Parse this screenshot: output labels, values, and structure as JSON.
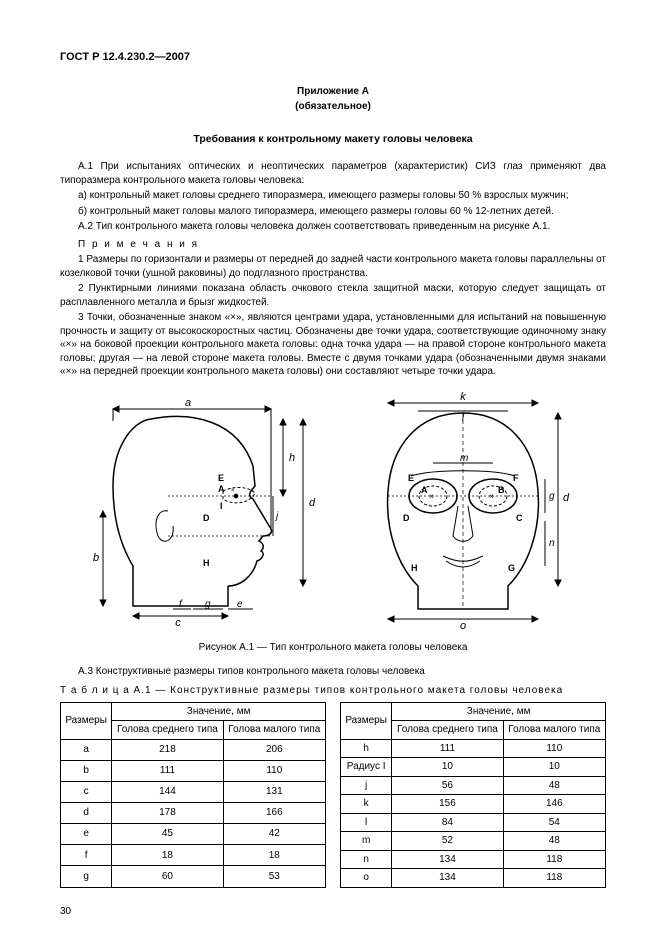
{
  "doc_id": "ГОСТ Р 12.4.230.2—2007",
  "appendix_label": "Приложение А",
  "appendix_mandatory": "(обязательное)",
  "title": "Требования к контрольному макету головы человека",
  "paragraphs": {
    "p1": "А.1 При испытаниях оптических и неоптических параметров (характеристик) СИЗ глаз применяют два типоразмера контрольного макета головы человека:",
    "p1a": "а) контрольный макет головы среднего типоразмера, имеющего размеры головы 50 % взрослых мужчин;",
    "p1b": "б) контрольный макет головы малого типоразмера, имеющего размеры головы 60 % 12-летних детей.",
    "p2": "А.2 Тип контрольного макета головы человека должен соответствовать приведенным на рисунке А.1.",
    "notes_hdr": "П р и м е ч а н и я",
    "n1": "1 Размеры по горизонтали и размеры от передней до задней части контрольного макета головы параллельны от козелковой точки (ушной раковины) до подглазного пространства.",
    "n2": "2 Пунктирными линиями показана область очкового стекла защитной маски, которую следует защищать от расплавленного металла и брызг жидкостей.",
    "n3": "3 Точки, обозначенные знаком «×», являются центрами удара, установленными для испытаний на повышенную прочность и защиту от высокоскоростных частиц. Обозначены две точки удара, соответствующие одиночному знаку «×» на боковой проекции контрольного макета головы: одна точка удара — на правой стороне контрольного макета головы; другая — на левой стороне макета головы. Вместе с двумя точками удара (обозначенными двумя знаками «×» на передней проекции контрольного макета головы) они составляют четыре точки удара."
  },
  "figure_caption": "Рисунок А.1 — Тип контрольного макета головы человека",
  "a3": "А.3 Конструктивные размеры типов контрольного макета головы человека",
  "table_caption": "Т а б л и ц а   А.1 — Конструктивные размеры типов контрольного макета головы человека",
  "table": {
    "headers": {
      "dim": "Размеры",
      "val": "Значение, мм",
      "mid": "Голова среднего типа",
      "small": "Голова малого типа"
    },
    "left_rows": [
      {
        "d": "a",
        "m": "218",
        "s": "206"
      },
      {
        "d": "b",
        "m": "111",
        "s": "110"
      },
      {
        "d": "c",
        "m": "144",
        "s": "131"
      },
      {
        "d": "d",
        "m": "178",
        "s": "166"
      },
      {
        "d": "e",
        "m": "45",
        "s": "42"
      },
      {
        "d": "f",
        "m": "18",
        "s": "18"
      },
      {
        "d": "g",
        "m": "60",
        "s": "53"
      }
    ],
    "right_rows": [
      {
        "d": "h",
        "m": "111",
        "s": "110"
      },
      {
        "d": "Радиус I",
        "m": "10",
        "s": "10"
      },
      {
        "d": "j",
        "m": "56",
        "s": "48"
      },
      {
        "d": "k",
        "m": "156",
        "s": "146"
      },
      {
        "d": "l",
        "m": "84",
        "s": "54"
      },
      {
        "d": "m",
        "m": "52",
        "s": "48"
      },
      {
        "d": "n",
        "m": "134",
        "s": "118"
      },
      {
        "d": "o",
        "m": "134",
        "s": "118"
      }
    ]
  },
  "page_number": "30",
  "figure_style": {
    "stroke": "#000000",
    "stroke_width": 1.5,
    "stroke_thin": 1,
    "fill": "#ffffff",
    "font_italic_size": 12,
    "font_label_size": 10
  }
}
